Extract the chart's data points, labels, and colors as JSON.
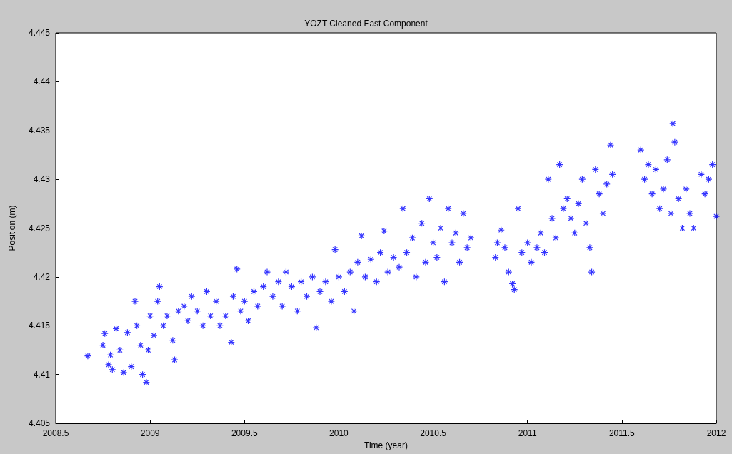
{
  "chart_data": {
    "type": "scatter",
    "title": "YOZT Cleaned East Component",
    "xlabel": "Time (year)",
    "ylabel": "Position (m)",
    "xlim": [
      2008.5,
      2012
    ],
    "xticks": [
      2008.5,
      2009,
      2009.5,
      2010,
      2010.5,
      2011,
      2011.5,
      2012
    ],
    "ylim": [
      4.405,
      4.445
    ],
    "yticks": [
      4.405,
      4.41,
      4.415,
      4.42,
      4.425,
      4.43,
      4.435,
      4.44,
      4.445
    ],
    "grid": false,
    "marker": "cross",
    "series": [
      {
        "color": "#0000ff",
        "x": [
          2008.67,
          2008.75,
          2008.76,
          2008.78,
          2008.79,
          2008.8,
          2008.82,
          2008.84,
          2008.86,
          2008.88,
          2008.9,
          2008.92,
          2008.93,
          2008.95,
          2008.96,
          2008.98,
          2008.99,
          2009.0,
          2009.02,
          2009.04,
          2009.05,
          2009.07,
          2009.09,
          2009.12,
          2009.13,
          2009.15,
          2009.18,
          2009.2,
          2009.22,
          2009.25,
          2009.28,
          2009.3,
          2009.32,
          2009.35,
          2009.37,
          2009.4,
          2009.43,
          2009.44,
          2009.46,
          2009.48,
          2009.5,
          2009.52,
          2009.55,
          2009.57,
          2009.6,
          2009.62,
          2009.65,
          2009.68,
          2009.7,
          2009.72,
          2009.75,
          2009.78,
          2009.8,
          2009.83,
          2009.86,
          2009.88,
          2009.9,
          2009.93,
          2009.96,
          2009.98,
          2010.0,
          2010.03,
          2010.06,
          2010.08,
          2010.1,
          2010.12,
          2010.14,
          2010.17,
          2010.2,
          2010.22,
          2010.24,
          2010.26,
          2010.29,
          2010.32,
          2010.34,
          2010.36,
          2010.39,
          2010.41,
          2010.44,
          2010.46,
          2010.48,
          2010.5,
          2010.52,
          2010.54,
          2010.56,
          2010.58,
          2010.6,
          2010.62,
          2010.64,
          2010.66,
          2010.68,
          2010.7,
          2010.83,
          2010.84,
          2010.86,
          2010.88,
          2010.9,
          2010.92,
          2010.93,
          2010.95,
          2010.97,
          2011.0,
          2011.02,
          2011.05,
          2011.07,
          2011.09,
          2011.11,
          2011.13,
          2011.15,
          2011.17,
          2011.19,
          2011.21,
          2011.23,
          2011.25,
          2011.27,
          2011.29,
          2011.31,
          2011.33,
          2011.34,
          2011.36,
          2011.38,
          2011.4,
          2011.42,
          2011.44,
          2011.45,
          2011.6,
          2011.62,
          2011.64,
          2011.66,
          2011.68,
          2011.7,
          2011.72,
          2011.74,
          2011.76,
          2011.77,
          2011.78,
          2011.8,
          2011.82,
          2011.84,
          2011.86,
          2011.88,
          2011.92,
          2011.94,
          2011.96,
          2011.98,
          2012.0
        ],
        "values": [
          4.4119,
          4.413,
          4.4142,
          4.411,
          4.412,
          4.4105,
          4.4147,
          4.4125,
          4.4102,
          4.4143,
          4.4108,
          4.4175,
          4.415,
          4.413,
          4.41,
          4.4092,
          4.4125,
          4.416,
          4.414,
          4.4175,
          4.419,
          4.415,
          4.416,
          4.4135,
          4.4115,
          4.4165,
          4.417,
          4.4155,
          4.418,
          4.4165,
          4.415,
          4.4185,
          4.416,
          4.4175,
          4.415,
          4.416,
          4.4133,
          4.418,
          4.4208,
          4.4165,
          4.4175,
          4.4155,
          4.4185,
          4.417,
          4.419,
          4.4205,
          4.418,
          4.4195,
          4.417,
          4.4205,
          4.419,
          4.4165,
          4.4195,
          4.418,
          4.42,
          4.4148,
          4.4185,
          4.4195,
          4.4175,
          4.4228,
          4.42,
          4.4185,
          4.4205,
          4.4165,
          4.4215,
          4.4242,
          4.42,
          4.4218,
          4.4195,
          4.4225,
          4.4247,
          4.4205,
          4.422,
          4.421,
          4.427,
          4.4225,
          4.424,
          4.42,
          4.4255,
          4.4215,
          4.428,
          4.4235,
          4.422,
          4.425,
          4.4195,
          4.427,
          4.4235,
          4.4245,
          4.4215,
          4.4265,
          4.423,
          4.424,
          4.422,
          4.4235,
          4.4248,
          4.423,
          4.4205,
          4.4193,
          4.4187,
          4.427,
          4.4225,
          4.4235,
          4.4215,
          4.423,
          4.4245,
          4.4225,
          4.43,
          4.426,
          4.424,
          4.4315,
          4.427,
          4.428,
          4.426,
          4.4245,
          4.4275,
          4.43,
          4.4255,
          4.423,
          4.4205,
          4.431,
          4.4285,
          4.4265,
          4.4295,
          4.4335,
          4.4305,
          4.433,
          4.43,
          4.4315,
          4.4285,
          4.431,
          4.427,
          4.429,
          4.432,
          4.4265,
          4.4357,
          4.4338,
          4.428,
          4.425,
          4.429,
          4.4265,
          4.425,
          4.4305,
          4.4285,
          4.43,
          4.4315,
          4.4262
        ]
      }
    ]
  }
}
